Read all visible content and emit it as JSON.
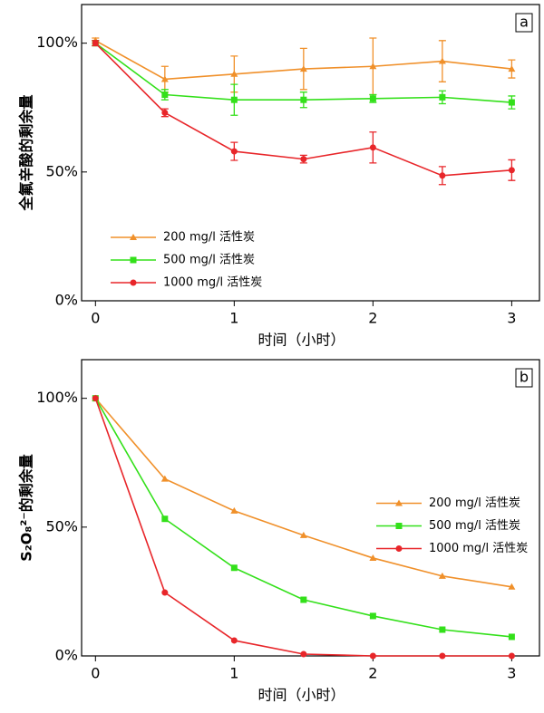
{
  "chart_data": [
    {
      "type": "line",
      "panel_label": "a",
      "x_label": "时间（小时）",
      "y_label": "全氟辛酸的剩余量",
      "xlim": [
        -0.1,
        3.2
      ],
      "xticks": [
        0,
        1,
        2,
        3
      ],
      "ylim": [
        0,
        115
      ],
      "yticks": [
        {
          "value": 0,
          "label": "0%"
        },
        {
          "value": 50,
          "label": "50%"
        },
        {
          "value": 100,
          "label": "100%"
        }
      ],
      "legend": "lower left",
      "x": [
        0,
        0.5,
        1,
        1.5,
        2,
        2.5,
        3
      ],
      "series": [
        {
          "name": "200 mg/l 活性炭",
          "color": "#f0902a",
          "marker": "triangle",
          "values": [
            101,
            86,
            88,
            90,
            91,
            93,
            90
          ],
          "errors": [
            1,
            5,
            7,
            8,
            11,
            8,
            3.5
          ]
        },
        {
          "name": "500 mg/l 活性炭",
          "color": "#33e01a",
          "marker": "square",
          "values": [
            100,
            80,
            78,
            78,
            78.5,
            79,
            77
          ],
          "errors": [
            1,
            2,
            6,
            3,
            1.5,
            2.5,
            2.5
          ]
        },
        {
          "name": "1000 mg/l 活性炭",
          "color": "#e8262a",
          "marker": "circle",
          "values": [
            100,
            73,
            58,
            55,
            59.5,
            48.6,
            50.7
          ],
          "errors": [
            1,
            1.5,
            3.5,
            1.5,
            6,
            3.5,
            4
          ]
        }
      ]
    },
    {
      "type": "line",
      "panel_label": "b",
      "x_label": "时间（小时）",
      "y_label": "S₂O₈²⁻的剩余量",
      "xlim": [
        -0.1,
        3.2
      ],
      "xticks": [
        0,
        1,
        2,
        3
      ],
      "ylim": [
        0,
        115
      ],
      "yticks": [
        {
          "value": 0,
          "label": "0%"
        },
        {
          "value": 50,
          "label": "50%"
        },
        {
          "value": 100,
          "label": "100%"
        }
      ],
      "legend": "center right",
      "x": [
        0,
        0.5,
        1,
        1.5,
        2,
        2.5,
        3
      ],
      "series": [
        {
          "name": "200 mg/l 活性炭",
          "color": "#f0902a",
          "marker": "triangle",
          "values": [
            100,
            68.7,
            56.3,
            46.8,
            38,
            31,
            26.8
          ]
        },
        {
          "name": "500 mg/l 活性炭",
          "color": "#33e01a",
          "marker": "square",
          "values": [
            100,
            53.2,
            34.2,
            21.8,
            15.5,
            10.2,
            7.4
          ]
        },
        {
          "name": "1000 mg/l 活性炭",
          "color": "#e8262a",
          "marker": "circle",
          "values": [
            100,
            24.6,
            6,
            0.7,
            0,
            0,
            0
          ]
        }
      ]
    }
  ]
}
